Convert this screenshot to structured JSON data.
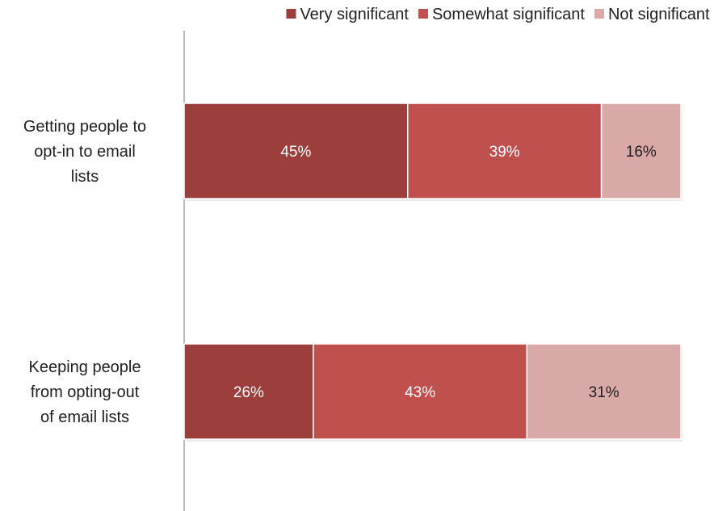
{
  "chart_data": {
    "type": "bar",
    "orientation": "horizontal",
    "stacked": true,
    "percent_stacked": true,
    "categories": [
      [
        "Getting people to",
        "opt-in to email",
        "lists"
      ],
      [
        "Keeping people",
        "from opting-out",
        "of email lists"
      ]
    ],
    "series": [
      {
        "name": "Very significant",
        "color": "#9b3e3c",
        "values": [
          45,
          26
        ]
      },
      {
        "name": "Somewhat significant",
        "color": "#c0504d",
        "values": [
          39,
          43
        ]
      },
      {
        "name": "Not significant",
        "color": "#d9a9a8",
        "values": [
          16,
          31
        ]
      }
    ],
    "data_labels": [
      [
        "45%",
        "26%"
      ],
      [
        "39%",
        "43%"
      ],
      [
        "16%",
        "31%"
      ]
    ],
    "label_colors": [
      "#ffffff",
      "#ffffff",
      "#1f1f1f"
    ],
    "xlim": [
      0,
      100
    ],
    "legend_position": "top-right",
    "grid": false
  }
}
